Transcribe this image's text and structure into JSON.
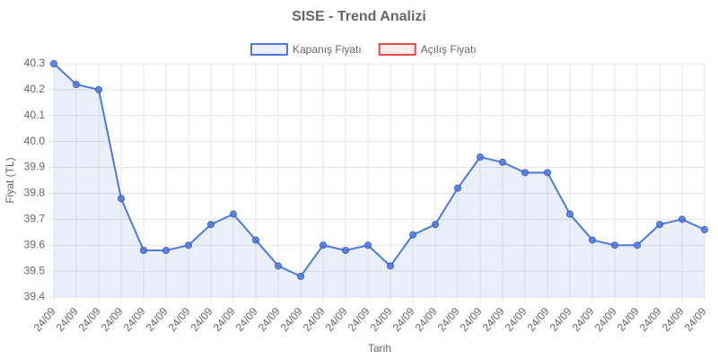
{
  "chart_data": {
    "type": "line",
    "title": "SISE - Trend Analizi",
    "xlabel": "Tarih",
    "ylabel": "Fiyat (TL)",
    "categories": [
      "24/09",
      "24/09",
      "24/09",
      "24/09",
      "24/09",
      "24/09",
      "24/09",
      "24/09",
      "24/09",
      "24/09",
      "24/09",
      "24/09",
      "24/09",
      "24/09",
      "24/09",
      "24/09",
      "24/09",
      "24/09",
      "24/09",
      "24/09",
      "24/09",
      "24/09",
      "24/09",
      "24/09",
      "24/09",
      "24/09",
      "24/09",
      "24/09",
      "24/09",
      "24/09"
    ],
    "series": [
      {
        "name": "Kapanış Fiyatı",
        "color": "#4f79dc",
        "fill": "rgba(79,121,220,0.12)",
        "values": [
          40.3,
          40.22,
          40.2,
          39.78,
          39.58,
          39.58,
          39.6,
          39.68,
          39.72,
          39.62,
          39.52,
          39.48,
          39.6,
          39.58,
          39.6,
          39.52,
          39.64,
          39.68,
          39.82,
          39.94,
          39.92,
          39.88,
          39.88,
          39.72,
          39.62,
          39.6,
          39.6,
          39.68,
          39.7,
          39.66
        ]
      },
      {
        "name": "Açılış Fiyatı",
        "color": "#e84a4a",
        "fill": "rgba(255,200,200,0.3)",
        "values": [
          null,
          null,
          null,
          null,
          null,
          null,
          null,
          null,
          null,
          null,
          null,
          null,
          null,
          null,
          null,
          null,
          null,
          null,
          null,
          null,
          null,
          null,
          null,
          null,
          null,
          null,
          null,
          null,
          null,
          null
        ]
      }
    ],
    "ylim": [
      39.4,
      40.3
    ],
    "yticks": [
      39.4,
      39.5,
      39.6,
      39.7,
      39.8,
      39.9,
      {
        "value": 40,
        "label": "40.0"
      },
      40.1,
      40.2,
      40.3
    ],
    "grid": true,
    "legend": "top"
  }
}
